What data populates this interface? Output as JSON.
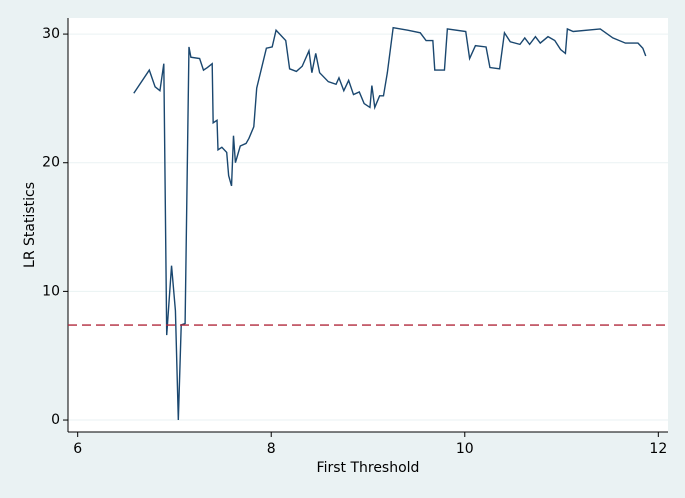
{
  "chart_data": {
    "type": "line",
    "xlabel": "First Threshold",
    "ylabel": "LR Statistics",
    "x": [
      6.58,
      6.74,
      6.8,
      6.85,
      6.89,
      6.92,
      6.97,
      7.01,
      7.04,
      7.07,
      7.11,
      7.15,
      7.17,
      7.26,
      7.3,
      7.34,
      7.39,
      7.4,
      7.44,
      7.45,
      7.49,
      7.54,
      7.56,
      7.59,
      7.61,
      7.63,
      7.68,
      7.74,
      7.77,
      7.82,
      7.85,
      7.95,
      8.01,
      8.05,
      8.15,
      8.19,
      8.26,
      8.32,
      8.39,
      8.42,
      8.46,
      8.5,
      8.59,
      8.67,
      8.7,
      8.75,
      8.8,
      8.85,
      8.91,
      8.96,
      9.02,
      9.04,
      9.07,
      9.12,
      9.16,
      9.2,
      9.26,
      9.41,
      9.54,
      9.6,
      9.67,
      9.69,
      9.79,
      9.82,
      10.01,
      10.05,
      10.11,
      10.22,
      10.26,
      10.36,
      10.41,
      10.47,
      10.57,
      10.62,
      10.67,
      10.73,
      10.78,
      10.86,
      10.93,
      10.99,
      11.04,
      11.06,
      11.12,
      11.4,
      11.53,
      11.66,
      11.79,
      11.84,
      11.87
    ],
    "values": [
      25.4,
      27.2,
      25.9,
      25.6,
      27.7,
      6.6,
      12.0,
      8.5,
      0,
      7.4,
      7.5,
      29.0,
      28.2,
      28.1,
      27.2,
      27.4,
      27.7,
      23.1,
      23.3,
      21.0,
      21.2,
      20.8,
      19.0,
      18.2,
      22.1,
      20.0,
      21.3,
      21.5,
      21.9,
      22.8,
      25.8,
      28.9,
      29.0,
      30.3,
      29.5,
      27.3,
      27.1,
      27.5,
      28.7,
      27.0,
      28.5,
      27.0,
      26.3,
      26.1,
      26.6,
      25.6,
      26.4,
      25.3,
      25.5,
      24.6,
      24.3,
      26.0,
      24.3,
      25.2,
      25.2,
      27.0,
      30.5,
      30.3,
      30.1,
      29.5,
      29.5,
      27.2,
      27.2,
      30.4,
      30.2,
      28.1,
      29.1,
      29.0,
      27.4,
      27.3,
      30.1,
      29.4,
      29.2,
      29.7,
      29.2,
      29.8,
      29.3,
      29.8,
      29.5,
      28.8,
      28.5,
      30.4,
      30.2,
      30.4,
      29.7,
      29.3,
      29.3,
      28.9,
      28.3
    ],
    "color": "#1a476f",
    "reference_line": {
      "value": 7.38,
      "color": "#b0283b"
    },
    "xlim": [
      5.9,
      12.1
    ],
    "xticks": [
      6,
      8,
      10,
      12
    ],
    "ylim": [
      -0.93,
      31.25
    ],
    "yticks": [
      0,
      10,
      20,
      30
    ],
    "grid": true
  }
}
